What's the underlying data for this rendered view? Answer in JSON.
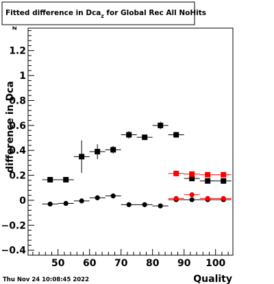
{
  "title": {
    "main": "Fitted difference in Dca",
    "sub": "z",
    "rest": " for Global Rec All NoHits"
  },
  "footer": {
    "timestamp": "Thu Nov 24 10:08:45 2022"
  },
  "chart_data": {
    "type": "scatter",
    "xlabel": "Quality",
    "ylabel": {
      "main": "difference in Dca",
      "sub": "z"
    },
    "xlim": [
      40.5,
      105.5
    ],
    "ylim": [
      -0.44,
      1.38
    ],
    "x_ticks": [
      50,
      60,
      70,
      80,
      90,
      100
    ],
    "y_ticks": [
      -0.4,
      -0.2,
      0,
      0.2,
      0.4,
      0.6,
      0.8,
      1,
      1.2
    ],
    "y_tick_labels": [
      "−0.4",
      "−0.2",
      "0",
      "0.2",
      "0.4",
      "0.6",
      "0.8",
      "1",
      "1.2"
    ],
    "grid": false,
    "legend": "none",
    "series": [
      {
        "marker": "square",
        "color": "#000000",
        "points": [
          {
            "x": 47.5,
            "y": 0.165,
            "xerr": 2.5,
            "yerr": 0.02
          },
          {
            "x": 52.5,
            "y": 0.165,
            "xerr": 2.5,
            "yerr": 0.02
          },
          {
            "x": 57.5,
            "y": 0.35,
            "xerr": 2.5,
            "yerr": 0.13
          },
          {
            "x": 62.5,
            "y": 0.39,
            "xerr": 2.5,
            "yerr": 0.06
          },
          {
            "x": 67.5,
            "y": 0.405,
            "xerr": 2.5,
            "yerr": 0.03
          },
          {
            "x": 72.5,
            "y": 0.525,
            "xerr": 2.5,
            "yerr": 0.03
          },
          {
            "x": 77.5,
            "y": 0.505,
            "xerr": 2.5,
            "yerr": 0.02
          },
          {
            "x": 82.5,
            "y": 0.6,
            "xerr": 2.5,
            "yerr": 0.03
          },
          {
            "x": 87.5,
            "y": 0.525,
            "xerr": 2.5,
            "yerr": 0.01
          },
          {
            "x": 92.5,
            "y": 0.175,
            "xerr": 2.5,
            "yerr": 0.01
          },
          {
            "x": 97.5,
            "y": 0.155,
            "xerr": 2.5,
            "yerr": 0.01
          },
          {
            "x": 102.5,
            "y": 0.155,
            "xerr": 2.5,
            "yerr": 0.01
          }
        ]
      },
      {
        "marker": "circle",
        "color": "#000000",
        "points": [
          {
            "x": 47.5,
            "y": -0.03,
            "xerr": 2.5,
            "yerr": 0.01
          },
          {
            "x": 52.5,
            "y": -0.025,
            "xerr": 2.5,
            "yerr": 0.01
          },
          {
            "x": 57.5,
            "y": -0.005,
            "xerr": 2.5,
            "yerr": 0.02
          },
          {
            "x": 62.5,
            "y": 0.02,
            "xerr": 2.5,
            "yerr": 0.02
          },
          {
            "x": 67.5,
            "y": 0.035,
            "xerr": 2.5,
            "yerr": 0.02
          },
          {
            "x": 72.5,
            "y": -0.035,
            "xerr": 2.5,
            "yerr": 0.015
          },
          {
            "x": 77.5,
            "y": -0.035,
            "xerr": 2.5,
            "yerr": 0.01
          },
          {
            "x": 82.5,
            "y": -0.045,
            "xerr": 2.5,
            "yerr": 0.01
          },
          {
            "x": 87.5,
            "y": 0.005,
            "xerr": 2.5,
            "yerr": 0.005
          },
          {
            "x": 92.5,
            "y": 0.005,
            "xerr": 2.5,
            "yerr": 0.005
          },
          {
            "x": 97.5,
            "y": 0.005,
            "xerr": 2.5,
            "yerr": 0.005
          },
          {
            "x": 102.5,
            "y": 0.005,
            "xerr": 2.5,
            "yerr": 0.005
          }
        ]
      },
      {
        "marker": "square",
        "color": "#ff0000",
        "points": [
          {
            "x": 87.5,
            "y": 0.215,
            "xerr": 2.5,
            "yerr": 0.02
          },
          {
            "x": 92.5,
            "y": 0.21,
            "xerr": 2.5,
            "yerr": 0.01
          },
          {
            "x": 97.5,
            "y": 0.205,
            "xerr": 2.5,
            "yerr": 0.01
          },
          {
            "x": 102.5,
            "y": 0.205,
            "xerr": 2.5,
            "yerr": 0.01
          }
        ]
      },
      {
        "marker": "circle",
        "color": "#ff0000",
        "points": [
          {
            "x": 87.5,
            "y": 0.015,
            "xerr": 2.5,
            "yerr": 0.01
          },
          {
            "x": 92.5,
            "y": 0.045,
            "xerr": 2.5,
            "yerr": 0.005
          },
          {
            "x": 97.5,
            "y": 0.015,
            "xerr": 2.5,
            "yerr": 0.005
          },
          {
            "x": 102.5,
            "y": 0.015,
            "xerr": 2.5,
            "yerr": 0.005
          }
        ]
      }
    ]
  }
}
